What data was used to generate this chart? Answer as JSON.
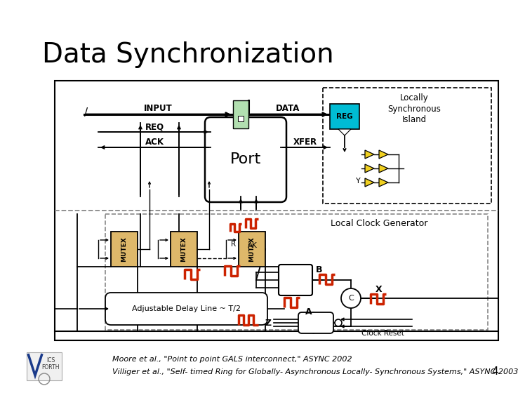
{
  "title": "Data Synchronization",
  "title_fontsize": 26,
  "bg_color": "#ffffff",
  "footer_line1": "Moore et al., \"Point to point GALS interconnect,\" ASYNC 2002",
  "footer_line2": "Villiger et al., \"Self- timed Ring for Globally- Asynchronous Locally- Synchronous Systems,\" ASYNC 2003",
  "footer_fontsize": 8.0,
  "page_number": "4",
  "colors": {
    "black": "#000000",
    "white": "#ffffff",
    "red": "#cc2200",
    "reg_fill": "#00bcd4",
    "mutex_fill": "#deb86a",
    "green_box": "#b2dfb0",
    "yellow": "#f0d020",
    "dashed": "#888888"
  }
}
